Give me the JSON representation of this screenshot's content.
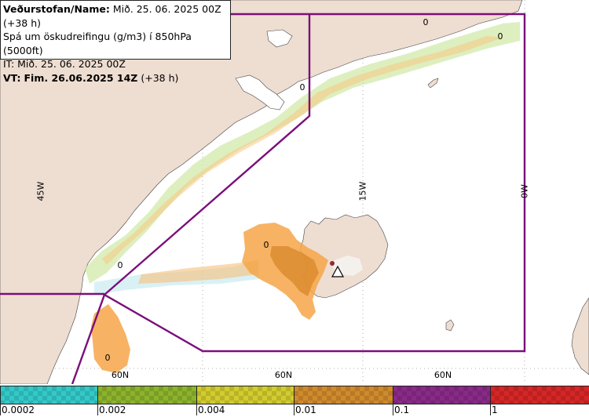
{
  "info": {
    "line1_label": "Veðurstofan/Name:",
    "line1_value": "Mið. 25. 06. 2025 00Z (+38 h)",
    "line2": "Spá um öskudreifingu (g/m3) í 850hPa (5000ft)",
    "line3": "IT: Mið. 25. 06. 2025 00Z",
    "line4_label": "VT:",
    "line4_value": "Fim. 26.06.2025 14Z",
    "line4_suffix": "(+38 h)"
  },
  "map": {
    "meridian_labels": [
      "45W",
      "15W",
      "0W"
    ],
    "parallel_labels": [
      "60N",
      "60N",
      "60N"
    ],
    "contour_labels": [
      "0",
      "0",
      "0",
      "0",
      "0",
      "0"
    ],
    "colors": {
      "land": "#eeddd1",
      "sea": "#ffffff",
      "region_line": "#7a0f7a",
      "ash_orange": "#f6a648",
      "ash_dark": "#d8872a"
    }
  },
  "legend": {
    "tick_labels": [
      "0.0002",
      "0.002",
      "0.004",
      "0.01",
      "0.1",
      "1"
    ],
    "segments": [
      {
        "color": "#33c9c9"
      },
      {
        "color": "#8cb32c"
      },
      {
        "color": "#d2cc2e"
      },
      {
        "color": "#d08a2c"
      },
      {
        "color": "#8a2a88"
      },
      {
        "color": "#d62626"
      }
    ]
  }
}
